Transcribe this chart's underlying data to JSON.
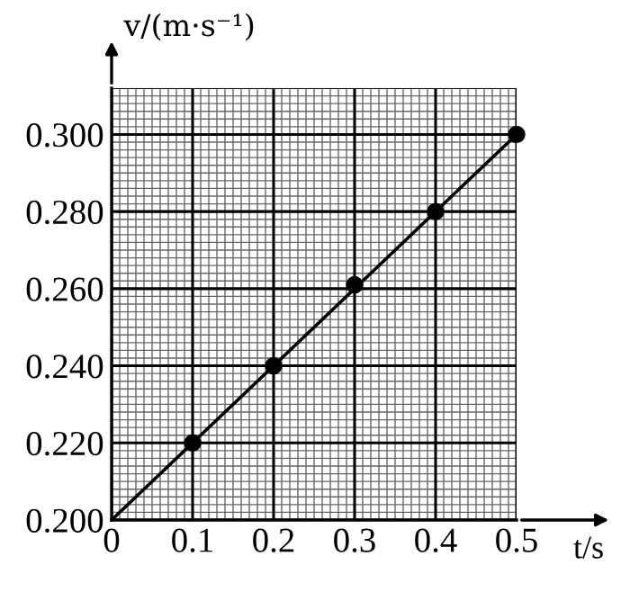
{
  "chart_data": {
    "type": "line",
    "xlabel": "t/s",
    "ylabel": "v/(m·s⁻¹)",
    "xlim": [
      0,
      0.5
    ],
    "ylim": [
      0.2,
      0.312
    ],
    "xticks": [
      {
        "value": 0,
        "label": "0"
      },
      0.1,
      0.2,
      0.3,
      0.4,
      0.5
    ],
    "yticks": [
      {
        "value": 0.2,
        "label": "0.200"
      },
      {
        "value": 0.22,
        "label": "0.220"
      },
      {
        "value": 0.24,
        "label": "0.240"
      },
      {
        "value": 0.26,
        "label": "0.260"
      },
      {
        "value": 0.28,
        "label": "0.280"
      },
      {
        "value": 0.3,
        "label": "0.300"
      }
    ],
    "grid": true,
    "series": [
      {
        "color": "#000000",
        "marker": "none",
        "x": [
          0,
          0.5
        ],
        "values": [
          0.2,
          0.3
        ]
      },
      {
        "type": "scatter",
        "marker": "circle",
        "color": "#000000",
        "x": [
          0.1,
          0.2,
          0.3,
          0.4,
          0.5
        ],
        "values": [
          0.22,
          0.24,
          0.261,
          0.28,
          0.3
        ]
      }
    ]
  }
}
